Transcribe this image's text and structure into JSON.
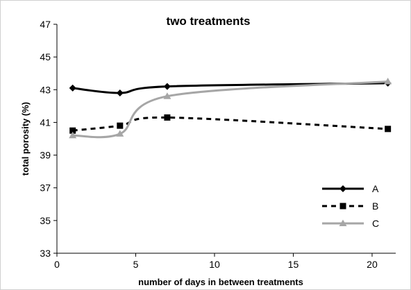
{
  "chart_data": {
    "type": "line",
    "title": "two treatments",
    "xlabel": "number of days in between treatments",
    "ylabel": "total porosity (%)",
    "xlim": [
      0,
      21.5
    ],
    "ylim": [
      33,
      47
    ],
    "xticks": [
      0,
      5,
      10,
      15,
      20
    ],
    "yticks": [
      33,
      35,
      37,
      39,
      41,
      43,
      45,
      47
    ],
    "grid": false,
    "legend_position": "bottom-right",
    "series": [
      {
        "name": "A",
        "color": "#000000",
        "dash": "solid",
        "marker": "diamond",
        "x": [
          1,
          4,
          7,
          21
        ],
        "y": [
          43.1,
          42.8,
          43.2,
          43.4
        ]
      },
      {
        "name": "B",
        "color": "#000000",
        "dash": "dashed",
        "marker": "square",
        "x": [
          1,
          4,
          7,
          21
        ],
        "y": [
          40.5,
          40.8,
          41.3,
          40.6
        ]
      },
      {
        "name": "C",
        "color": "#a6a6a6",
        "dash": "solid",
        "marker": "triangle",
        "x": [
          1,
          4,
          7,
          21
        ],
        "y": [
          40.2,
          40.3,
          42.6,
          43.5
        ]
      }
    ]
  }
}
